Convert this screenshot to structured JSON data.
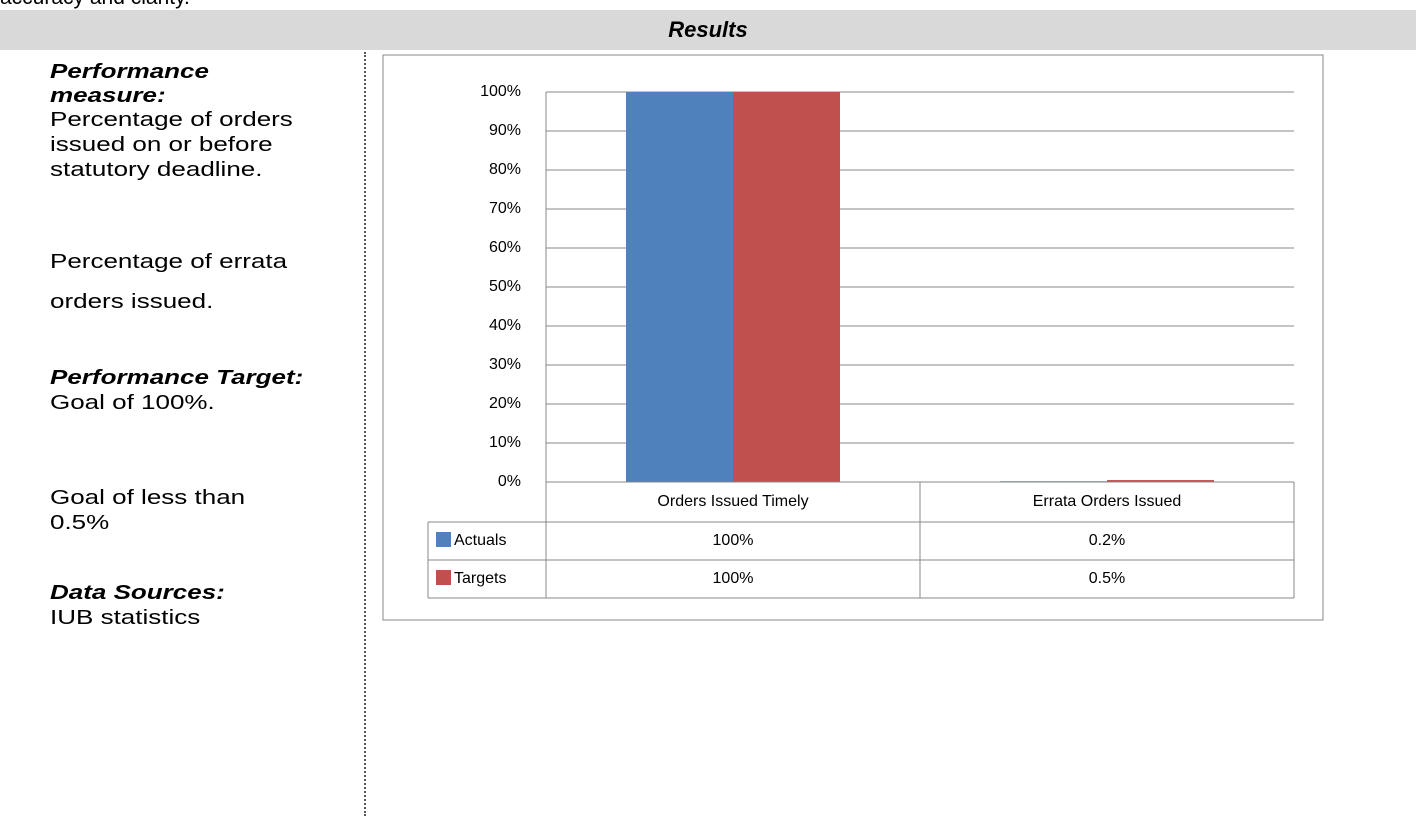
{
  "header_text": "accuracy and clarity.",
  "section_title": "Results",
  "sidebar": {
    "measure_label": [
      "Performance",
      "measure:"
    ],
    "measure_1": [
      "Percentage of orders",
      "issued on or before",
      "statutory deadline."
    ],
    "measure_2": [
      "Percentage of errata",
      "orders issued."
    ],
    "target_label": [
      "Performance Target:"
    ],
    "target_1": [
      "Goal of 100%."
    ],
    "target_2": [
      "Goal of less than",
      "0.5%"
    ],
    "source_label": [
      "Data Sources:"
    ],
    "source_1": [
      "IUB statistics"
    ]
  },
  "chart_data": {
    "type": "bar",
    "categories": [
      "Orders Issued Timely",
      "Errata Orders Issued"
    ],
    "series": [
      {
        "name": "Actuals",
        "color": "#4f81bd",
        "values": [
          100,
          0.2
        ],
        "value_labels": [
          "100%",
          "0.2%"
        ]
      },
      {
        "name": "Targets",
        "color": "#c0504d",
        "values": [
          100,
          0.5
        ],
        "value_labels": [
          "100%",
          "0.5%"
        ]
      }
    ],
    "ylim": [
      0,
      100
    ],
    "yticks": [
      {
        "value": 0,
        "label": "0%"
      },
      {
        "value": 10,
        "label": "10%"
      },
      {
        "value": 20,
        "label": "20%"
      },
      {
        "value": 30,
        "label": "30%"
      },
      {
        "value": 40,
        "label": "40%"
      },
      {
        "value": 50,
        "label": "50%"
      },
      {
        "value": 60,
        "label": "60%"
      },
      {
        "value": 70,
        "label": "70%"
      },
      {
        "value": 80,
        "label": "80%"
      },
      {
        "value": 90,
        "label": "90%"
      },
      {
        "value": 100,
        "label": "100%"
      }
    ],
    "grid": true,
    "data_table": true
  }
}
